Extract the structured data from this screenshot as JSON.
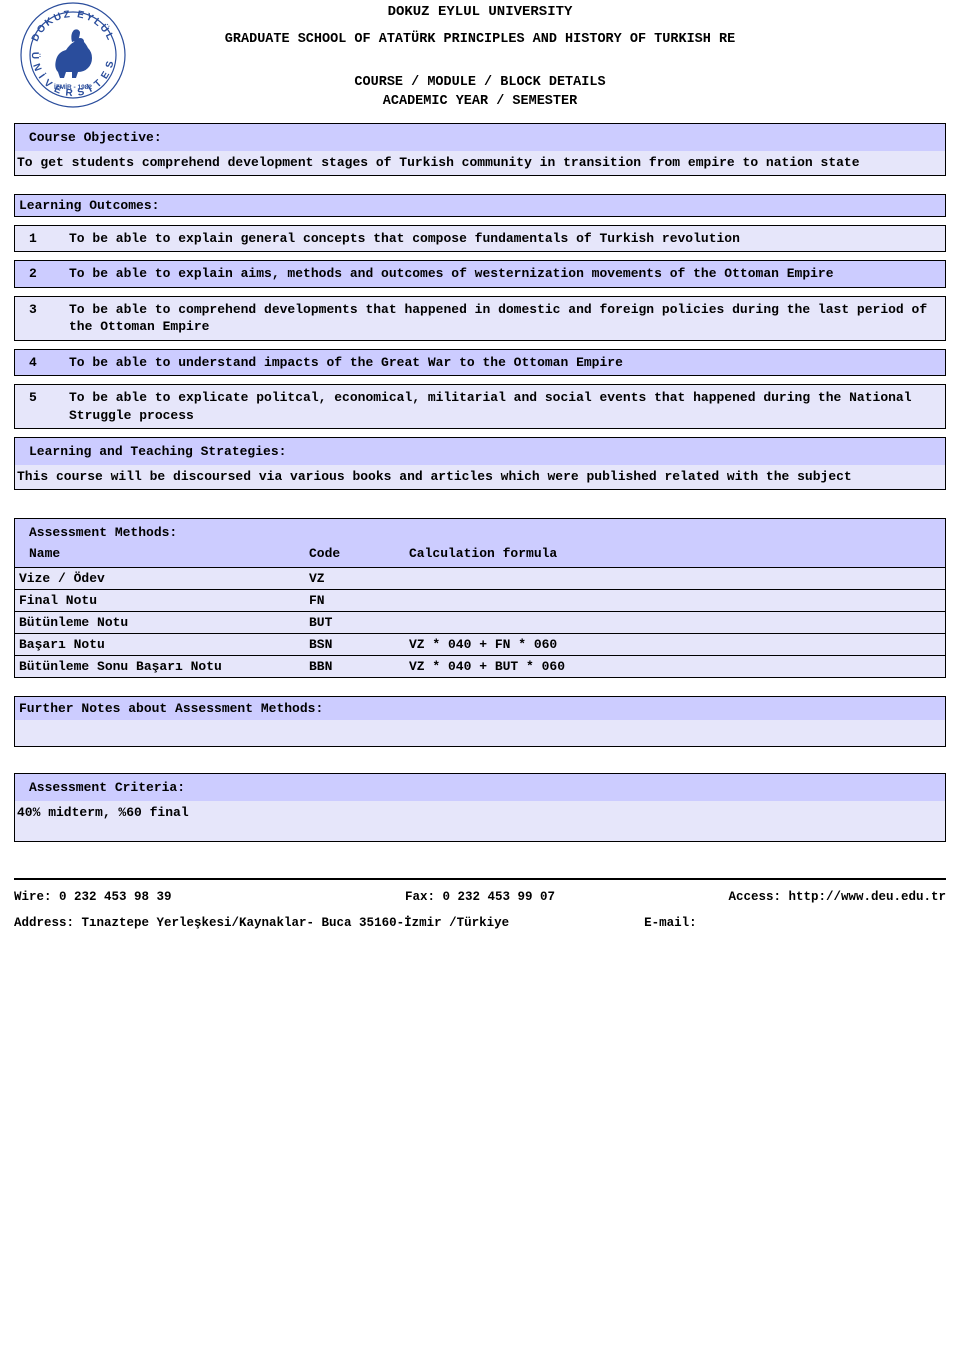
{
  "colors": {
    "header_bg": "#ccccff",
    "row_bg": "#e6e6fa",
    "border": "#000000",
    "text": "#000000",
    "logo_blue": "#2a4d9c",
    "logo_text": "#1a3a8a"
  },
  "header": {
    "university": "DOKUZ EYLUL UNIVERSITY",
    "department": "GRADUATE SCHOOL OF ATATÜRK PRINCIPLES AND HISTORY OF TURKISH RE",
    "course_line": "COURSE / MODULE / BLOCK DETAILS",
    "year_line": "ACADEMIC YEAR / SEMESTER",
    "logo_top": "DOKUZ EYLÜL",
    "logo_bottom": "ÜNİVERSİTESİ",
    "logo_year": "İZMİR - 1982"
  },
  "objective": {
    "title": "Course Objective:",
    "text": "To get students comprehend development stages of Turkish community in transition from empire to nation state"
  },
  "outcomes": {
    "title": "Learning Outcomes:",
    "items": [
      {
        "n": "1",
        "text": "To be able to explain general concepts that compose fundamentals of Turkish revolution"
      },
      {
        "n": "2",
        "text": "To be able to explain aims, methods and outcomes of westernization movements of the Ottoman Empire"
      },
      {
        "n": "3",
        "text": "To be able to comprehend developments that happened in domestic and foreign policies during the last period of the Ottoman Empire"
      },
      {
        "n": "4",
        "text": "To be able to understand impacts of the Great War to the Ottoman Empire"
      },
      {
        "n": "5",
        "text": "To be able to explicate politcal, economical, militarial and social events that happened during the National Struggle process"
      }
    ]
  },
  "strategies": {
    "title": "Learning and Teaching Strategies:",
    "text": "This course will be discoursed via various books and articles which were published related with the subject"
  },
  "assessment": {
    "title": "Assessment Methods:",
    "col_name": "Name",
    "col_code": "Code",
    "col_formula": "Calculation formula",
    "rows": [
      {
        "name": "Vize / Ödev",
        "code": "VZ",
        "formula": ""
      },
      {
        "name": "Final Notu",
        "code": "FN",
        "formula": ""
      },
      {
        "name": "Bütünleme Notu",
        "code": "BUT",
        "formula": ""
      },
      {
        "name": "Başarı Notu",
        "code": "BSN",
        "formula": "VZ * 040 + FN * 060"
      },
      {
        "name": "Bütünleme Sonu Başarı Notu",
        "code": "BBN",
        "formula": "VZ * 040 + BUT * 060"
      }
    ]
  },
  "further_notes": {
    "title": "Further Notes about Assessment Methods:",
    "text": ""
  },
  "criteria": {
    "title": "Assessment Criteria:",
    "text": "40% midterm, %60 final"
  },
  "footer": {
    "wire_label": "Wire: ",
    "wire_value": "0 232 453 98 39",
    "fax_label": "Fax: ",
    "fax_value": "0 232 453 99 07",
    "access_label": "Access: ",
    "access_value": "http://www.deu.edu.tr",
    "address_label": "Address: ",
    "address_value": "Tınaztepe Yerleşkesi/Kaynaklar- Buca 35160-İzmir /Türkiye",
    "email_label": "E-mail:"
  }
}
